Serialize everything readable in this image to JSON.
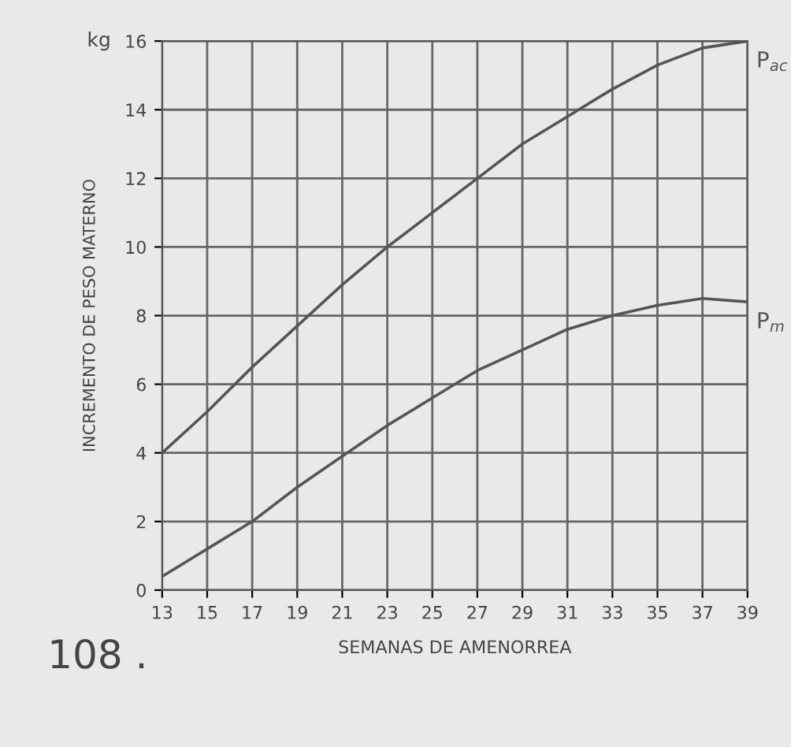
{
  "chart_data": {
    "type": "line",
    "xlabel": "SEMANAS DE AMENORREA",
    "ylabel": "INCREMENTO DE PESO MATERNO",
    "x": [
      13,
      15,
      17,
      19,
      21,
      23,
      25,
      27,
      29,
      31,
      33,
      35,
      37,
      39
    ],
    "series": [
      {
        "name": "P$_{ac}$",
        "color": "#555555",
        "values": [
          4,
          5.2,
          6.5,
          7.7,
          8.9,
          10,
          11,
          12,
          13,
          13.8,
          14.6,
          15.3,
          15.8,
          16
        ]
      },
      {
        "name": "P$_{m}$",
        "color": "#555555",
        "values": [
          0.4,
          1.2,
          2,
          3,
          3.9,
          4.8,
          5.6,
          6.4,
          7,
          7.6,
          8,
          8.3,
          8.5,
          8.4
        ]
      }
    ],
    "xlim": [
      13,
      39
    ],
    "xticks": [
      13,
      15,
      17,
      19,
      21,
      23,
      25,
      27,
      29,
      31,
      33,
      35,
      37,
      39
    ],
    "ylim": [
      0,
      16
    ],
    "yticks": [
      0,
      2,
      4,
      6,
      8,
      10,
      12,
      14,
      16
    ],
    "grid": true,
    "legend": false,
    "marker": "none",
    "line_style": "solid",
    "annotations": [
      "kg",
      "108 ."
    ]
  }
}
